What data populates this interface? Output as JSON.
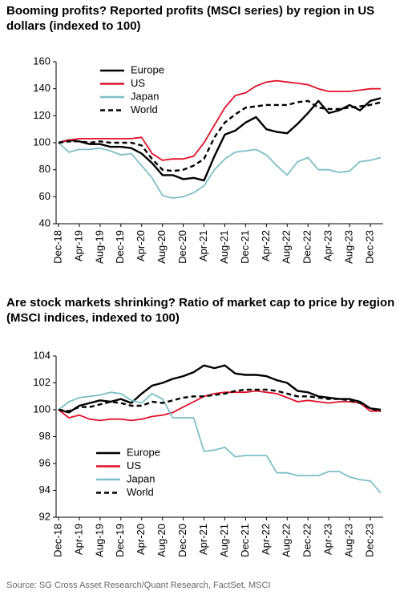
{
  "chart_data": [
    {
      "type": "line",
      "title": "Booming profits? Reported profits (MSCI series) by region in US dollars (indexed to 100)",
      "categories": [
        "Dec-18",
        null,
        "Apr-19",
        null,
        "Aug-19",
        null,
        "Dec-19",
        null,
        "Apr-20",
        null,
        "Aug-20",
        null,
        "Dec-20",
        null,
        "Apr-21",
        null,
        "Aug-21",
        null,
        "Dec-21",
        null,
        "Apr-22",
        null,
        "Aug-22",
        null,
        "Dec-22",
        null,
        "Apr-23",
        null,
        "Aug-23",
        null,
        "Dec-23",
        null
      ],
      "series": [
        {
          "name": "Europe",
          "color": "#000000",
          "dashed": false,
          "values": [
            100,
            102,
            101,
            99,
            99,
            97,
            97,
            96,
            92,
            85,
            76,
            76,
            73,
            74,
            72,
            90,
            106,
            109,
            115,
            119,
            110,
            108,
            107,
            114,
            122,
            131,
            122,
            124,
            128,
            124,
            131,
            133
          ]
        },
        {
          "name": "US",
          "color": "#e0102a",
          "dashed": false,
          "values": [
            100,
            102,
            103,
            103,
            103,
            103,
            103,
            103,
            104,
            92,
            87,
            88,
            88,
            90,
            100,
            113,
            126,
            135,
            137,
            142,
            145,
            146,
            145,
            144,
            143,
            140,
            138,
            138,
            138,
            139,
            140,
            140
          ]
        },
        {
          "name": "Japan",
          "color": "#7fbfc6",
          "dashed": false,
          "values": [
            100,
            93,
            95,
            95,
            96,
            94,
            91,
            92,
            83,
            74,
            61,
            59,
            60,
            63,
            68,
            80,
            88,
            93,
            94,
            95,
            91,
            83,
            76,
            86,
            89,
            80,
            80,
            78,
            79,
            86,
            87,
            89
          ]
        },
        {
          "name": "World",
          "color": "#000000",
          "dashed": true,
          "values": [
            100,
            101,
            101,
            100,
            101,
            100,
            100,
            100,
            98,
            88,
            80,
            79,
            80,
            83,
            88,
            104,
            115,
            121,
            126,
            127,
            128,
            128,
            128,
            130,
            131,
            126,
            125,
            125,
            126,
            127,
            128,
            130
          ]
        }
      ],
      "ylim": [
        40,
        160
      ],
      "yticks": [
        40,
        60,
        80,
        100,
        120,
        140,
        160
      ],
      "grid": false,
      "legend": "upper left"
    },
    {
      "type": "line",
      "title": "Are stock markets shrinking? Ratio of market cap to price by region (MSCI indices, indexed to 100)",
      "categories": [
        "Dec-18",
        null,
        "Apr-19",
        null,
        "Aug-19",
        null,
        "Dec-19",
        null,
        "Apr-20",
        null,
        "Aug-20",
        null,
        "Dec-20",
        null,
        "Apr-21",
        null,
        "Aug-21",
        null,
        "Dec-21",
        null,
        "Apr-22",
        null,
        "Aug-22",
        null,
        "Dec-22",
        null,
        "Apr-23",
        null,
        "Aug-23",
        null,
        "Dec-23",
        null
      ],
      "series": [
        {
          "name": "Europe",
          "color": "#000000",
          "dashed": false,
          "values": [
            100,
            99.8,
            100.3,
            100.5,
            100.7,
            100.6,
            100.8,
            100.5,
            101.2,
            101.8,
            102.0,
            102.3,
            102.5,
            102.8,
            103.3,
            103.1,
            103.3,
            102.7,
            102.6,
            102.6,
            102.5,
            102.2,
            102.0,
            101.4,
            101.3,
            101.0,
            100.9,
            100.8,
            100.8,
            100.6,
            100.1,
            100.0
          ]
        },
        {
          "name": "US",
          "color": "#e0102a",
          "dashed": false,
          "values": [
            100,
            99.4,
            99.6,
            99.3,
            99.2,
            99.3,
            99.3,
            99.2,
            99.3,
            99.5,
            99.6,
            99.8,
            100.2,
            100.6,
            101.0,
            101.2,
            101.3,
            101.3,
            101.3,
            101.4,
            101.3,
            101.2,
            100.9,
            100.6,
            100.7,
            100.6,
            100.5,
            100.6,
            100.6,
            100.5,
            99.9,
            99.9
          ]
        },
        {
          "name": "Japan",
          "color": "#7fbfc6",
          "dashed": false,
          "values": [
            100,
            100.6,
            100.9,
            101.0,
            101.1,
            101.3,
            101.2,
            100.7,
            100.5,
            101.2,
            100.8,
            99.4,
            99.4,
            99.4,
            96.9,
            97.0,
            97.2,
            96.5,
            96.6,
            96.6,
            96.6,
            95.3,
            95.3,
            95.1,
            95.1,
            95.1,
            95.4,
            95.4,
            95.0,
            94.8,
            94.7,
            93.8
          ]
        },
        {
          "name": "World",
          "color": "#000000",
          "dashed": true,
          "values": [
            100,
            99.9,
            100.2,
            100.2,
            100.4,
            100.6,
            100.5,
            100.3,
            100.3,
            100.6,
            100.5,
            100.7,
            100.9,
            101.0,
            101.0,
            101.1,
            101.2,
            101.4,
            101.5,
            101.5,
            101.5,
            101.4,
            101.2,
            101.0,
            101.0,
            100.9,
            100.8,
            100.8,
            100.7,
            100.5,
            100.1,
            99.9
          ]
        }
      ],
      "ylim": [
        92,
        104
      ],
      "yticks": [
        92,
        94,
        96,
        98,
        100,
        102,
        104
      ],
      "grid": false,
      "legend": "lower left"
    }
  ],
  "source": "Source: SG Cross Asset Research/Quant Research, FactSet, MSCI"
}
